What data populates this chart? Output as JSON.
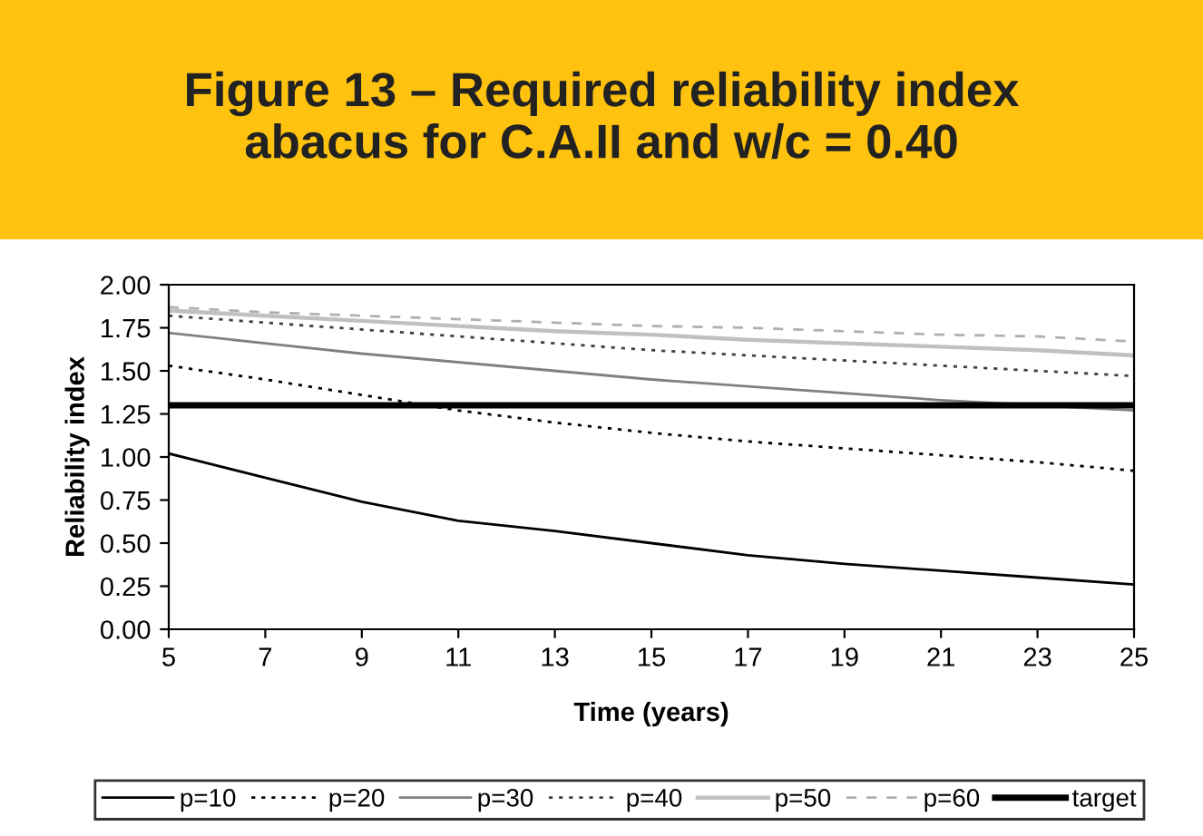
{
  "chart_data": {
    "type": "line",
    "title": "Figure 13 – Required reliability index\nabacus for C.A.II and w/c = 0.40",
    "xlabel": "Time (years)",
    "ylabel": "Reliability index",
    "x": [
      5,
      7,
      9,
      11,
      13,
      15,
      17,
      19,
      21,
      23,
      25
    ],
    "series": [
      {
        "name": "p=10",
        "color": "#000000",
        "line_style": "solid",
        "values": [
          1.02,
          0.88,
          0.74,
          0.63,
          0.57,
          0.5,
          0.43,
          0.38,
          0.34,
          0.3,
          0.26
        ]
      },
      {
        "name": "p=20",
        "color": "#000000",
        "line_style": "dotted",
        "values": [
          1.53,
          1.45,
          1.36,
          1.27,
          1.2,
          1.14,
          1.09,
          1.05,
          1.01,
          0.97,
          0.92
        ]
      },
      {
        "name": "p=30",
        "color": "#808080",
        "line_style": "solid",
        "values": [
          1.72,
          1.66,
          1.6,
          1.55,
          1.5,
          1.45,
          1.41,
          1.37,
          1.33,
          1.3,
          1.27
        ]
      },
      {
        "name": "p=40",
        "color": "#404040",
        "line_style": "dotted",
        "values": [
          1.82,
          1.78,
          1.74,
          1.7,
          1.66,
          1.62,
          1.59,
          1.56,
          1.53,
          1.5,
          1.47
        ]
      },
      {
        "name": "p=50",
        "color": "#c0c0c0",
        "line_style": "solid",
        "values": [
          1.85,
          1.82,
          1.79,
          1.76,
          1.73,
          1.71,
          1.68,
          1.66,
          1.64,
          1.62,
          1.59
        ]
      },
      {
        "name": "p=60",
        "color": "#b0b0b0",
        "line_style": "dashed",
        "values": [
          1.87,
          1.84,
          1.82,
          1.8,
          1.78,
          1.76,
          1.75,
          1.73,
          1.71,
          1.7,
          1.67
        ]
      },
      {
        "name": "target",
        "color": "#000000",
        "line_style": "solid",
        "values": [
          1.3,
          1.3,
          1.3,
          1.3,
          1.3,
          1.3,
          1.3,
          1.3,
          1.3,
          1.3,
          1.3
        ]
      }
    ],
    "xlim": [
      5,
      25
    ],
    "xticks": [
      5,
      7,
      9,
      11,
      13,
      15,
      17,
      19,
      21,
      23,
      25
    ],
    "ylim": [
      0,
      2
    ],
    "yticks": [
      {
        "value": 0,
        "label": "0.00"
      },
      {
        "value": 0.25,
        "label": "0.25"
      },
      {
        "value": 0.5,
        "label": "0.50"
      },
      {
        "value": 0.75,
        "label": "0.75"
      },
      {
        "value": 1,
        "label": "1.00"
      },
      {
        "value": 1.25,
        "label": "1.25"
      },
      {
        "value": 1.5,
        "label": "1.50"
      },
      {
        "value": 1.75,
        "label": "1.75"
      },
      {
        "value": 2,
        "label": "2.00"
      }
    ],
    "grid": false,
    "legend": "bottom",
    "marker": "none"
  }
}
